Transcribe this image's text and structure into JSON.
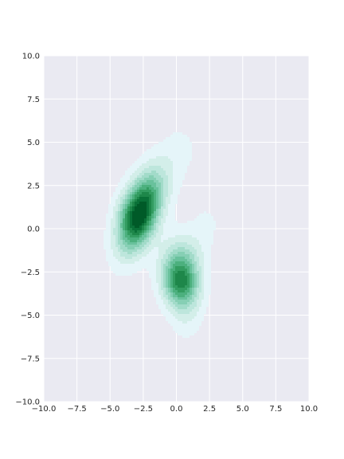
{
  "chart_data": {
    "type": "heatmap",
    "subtype": "kde-filled-contour",
    "title": "",
    "xlabel": "",
    "ylabel": "",
    "xlim": [
      -10,
      10
    ],
    "ylim": [
      -10,
      10
    ],
    "xticks": [
      -10,
      -7.5,
      -5,
      -2.5,
      0,
      2.5,
      5,
      7.5,
      10
    ],
    "yticks": [
      -10,
      -7.5,
      -5,
      -2.5,
      0,
      2.5,
      5,
      7.5,
      10
    ],
    "xtick_labels": [
      "−10.0",
      "−7.5",
      "−5.0",
      "−2.5",
      "0.0",
      "2.5",
      "5.0",
      "7.5",
      "10.0"
    ],
    "ytick_labels": [
      "−10.0",
      "−7.5",
      "−5.0",
      "−2.5",
      "0.0",
      "2.5",
      "5.0",
      "7.5",
      "10.0"
    ],
    "grid": true,
    "colormap": "BuGn",
    "background_color": "#eaeaf2",
    "grid_color": "#ffffff",
    "mixture": [
      {
        "center": [
          -2.8,
          0.8
        ],
        "sigma": [
          1.1,
          1.5
        ],
        "rho": 0.45,
        "weight": 0.6
      },
      {
        "center": [
          0.3,
          -2.8
        ],
        "sigma": [
          1.0,
          1.3
        ],
        "rho": -0.15,
        "weight": 0.4
      }
    ],
    "tail_arms": [
      {
        "from": [
          -3.0,
          0.8
        ],
        "to": [
          0.2,
          4.5
        ],
        "width": 1.0,
        "weight": 0.12
      },
      {
        "from": [
          0.4,
          -2.8
        ],
        "to": [
          2.2,
          0.2
        ],
        "width": 0.9,
        "weight": 0.1
      },
      {
        "from": [
          0.3,
          -3.5
        ],
        "to": [
          0.8,
          -5.5
        ],
        "width": 0.8,
        "weight": 0.08
      }
    ],
    "level_colors": [
      "#e5f5f9",
      "#d3eee9",
      "#bde6dc",
      "#a2dbc9",
      "#86cfb4",
      "#69c19c",
      "#4cb07e",
      "#339c61",
      "#1e874a",
      "#0a7138",
      "#005a28"
    ]
  }
}
